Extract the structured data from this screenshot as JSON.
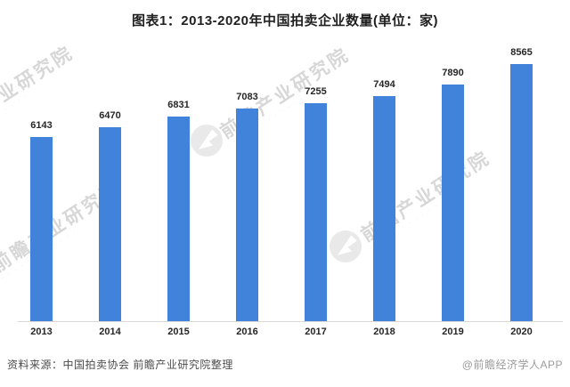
{
  "title": "图表1：2013-2020年中国拍卖企业数量(单位：家)",
  "chart_data": {
    "type": "bar",
    "categories": [
      "2013",
      "2014",
      "2015",
      "2016",
      "2017",
      "2018",
      "2019",
      "2020"
    ],
    "values": [
      6143,
      6470,
      6831,
      7083,
      7255,
      7494,
      7890,
      8565
    ],
    "title": "图表1：2013-2020年中国拍卖企业数量(单位：家)",
    "xlabel": "",
    "ylabel": "",
    "ylim": [
      0,
      8565
    ],
    "grid": false,
    "legend": null,
    "value_labels_shown": true,
    "bar_color": "#4182da"
  },
  "footer": {
    "source": "资料来源：中国拍卖协会 前瞻产业研究院整理",
    "credit": "@前瞻经济学人APP"
  },
  "watermark": {
    "label": "前瞻产业研究院",
    "sub_label": "·  ·  ·  ·  ·  ·  ·  ·  ·  ·  ·  ·",
    "logo_color": "#c9c9c9"
  }
}
